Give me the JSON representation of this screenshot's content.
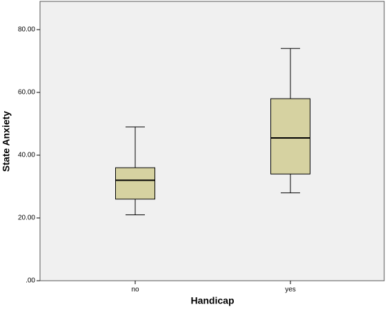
{
  "chart_data": {
    "type": "box",
    "x_label": "Handicap",
    "y_label": "State Anxiety",
    "categories": [
      "no",
      "yes"
    ],
    "boxes": [
      {
        "min": 21,
        "q1": 26,
        "median": 32,
        "q3": 36,
        "max": 49
      },
      {
        "min": 28,
        "q1": 34,
        "median": 45.5,
        "q3": 58,
        "max": 74
      }
    ],
    "color": "#d6d2a1",
    "ylim": [
      0,
      89
    ],
    "yticks": [
      {
        "value": 0,
        "label": ".00"
      },
      {
        "value": 20,
        "label": "20.00"
      },
      {
        "value": 40,
        "label": "40.00"
      },
      {
        "value": 60,
        "label": "60.00"
      },
      {
        "value": 80,
        "label": "80.00"
      }
    ]
  }
}
